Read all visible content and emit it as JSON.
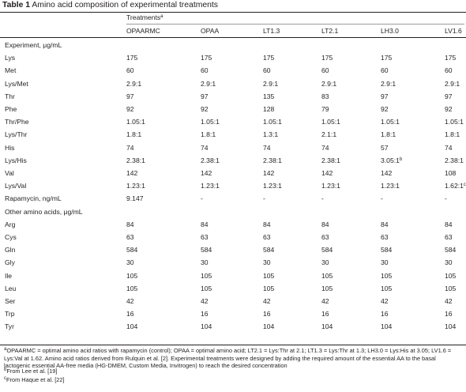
{
  "title": {
    "label": "Table 1",
    "text": "Amino acid composition of experimental treatments"
  },
  "treatments_header": {
    "text": "Treatments",
    "sup": "a"
  },
  "columns": [
    "OPAARMC",
    "OPAA",
    "LT1.3",
    "LT2.1",
    "LH3.0",
    "LV1.6"
  ],
  "rows": [
    {
      "label": "Experiment, μg/mL",
      "section": true,
      "cells": []
    },
    {
      "label": "Lys",
      "cells": [
        {
          "v": "175"
        },
        {
          "v": "175"
        },
        {
          "v": "175"
        },
        {
          "v": "175"
        },
        {
          "v": "175"
        },
        {
          "v": "175"
        }
      ]
    },
    {
      "label": "Met",
      "cells": [
        {
          "v": "60"
        },
        {
          "v": "60"
        },
        {
          "v": "60"
        },
        {
          "v": "60"
        },
        {
          "v": "60"
        },
        {
          "v": "60"
        }
      ]
    },
    {
      "label": "Lys/Met",
      "cells": [
        {
          "v": "2.9:1"
        },
        {
          "v": "2.9:1"
        },
        {
          "v": "2.9:1"
        },
        {
          "v": "2.9:1"
        },
        {
          "v": "2.9:1"
        },
        {
          "v": "2.9:1"
        }
      ]
    },
    {
      "label": "Thr",
      "cells": [
        {
          "v": "97"
        },
        {
          "v": "97"
        },
        {
          "v": "135"
        },
        {
          "v": "83"
        },
        {
          "v": "97"
        },
        {
          "v": "97"
        }
      ]
    },
    {
      "label": "Phe",
      "cells": [
        {
          "v": "92"
        },
        {
          "v": "92"
        },
        {
          "v": "128"
        },
        {
          "v": "79"
        },
        {
          "v": "92"
        },
        {
          "v": "92"
        }
      ]
    },
    {
      "label": "Thr/Phe",
      "cells": [
        {
          "v": "1.05:1"
        },
        {
          "v": "1.05:1"
        },
        {
          "v": "1.05:1"
        },
        {
          "v": "1.05:1"
        },
        {
          "v": "1.05:1"
        },
        {
          "v": "1.05:1"
        }
      ]
    },
    {
      "label": "Lys/Thr",
      "cells": [
        {
          "v": "1.8:1"
        },
        {
          "v": "1.8:1"
        },
        {
          "v": "1.3:1"
        },
        {
          "v": "2.1:1"
        },
        {
          "v": "1.8:1"
        },
        {
          "v": "1.8:1"
        }
      ]
    },
    {
      "label": "His",
      "cells": [
        {
          "v": "74"
        },
        {
          "v": "74"
        },
        {
          "v": "74"
        },
        {
          "v": "74"
        },
        {
          "v": "57"
        },
        {
          "v": "74"
        }
      ]
    },
    {
      "label": "Lys/His",
      "cells": [
        {
          "v": "2.38:1"
        },
        {
          "v": "2.38:1"
        },
        {
          "v": "2.38:1"
        },
        {
          "v": "2.38:1"
        },
        {
          "v": "3.05:1",
          "sup": "b"
        },
        {
          "v": "2.38:1"
        }
      ]
    },
    {
      "label": "Val",
      "cells": [
        {
          "v": "142"
        },
        {
          "v": "142"
        },
        {
          "v": "142"
        },
        {
          "v": "142"
        },
        {
          "v": "142"
        },
        {
          "v": "108"
        }
      ]
    },
    {
      "label": "Lys/Val",
      "cells": [
        {
          "v": "1.23:1"
        },
        {
          "v": "1.23:1"
        },
        {
          "v": "1.23:1"
        },
        {
          "v": "1.23:1"
        },
        {
          "v": "1.23:1"
        },
        {
          "v": "1.62:1",
          "sup": "c"
        }
      ]
    },
    {
      "label": "Rapamycin, ng/mL",
      "cells": [
        {
          "v": "9.147"
        },
        {
          "v": "-"
        },
        {
          "v": "-"
        },
        {
          "v": "-"
        },
        {
          "v": "-"
        },
        {
          "v": "-"
        }
      ]
    },
    {
      "label": "Other amino acids, μg/mL",
      "section": true,
      "cells": []
    },
    {
      "label": "Arg",
      "cells": [
        {
          "v": "84"
        },
        {
          "v": "84"
        },
        {
          "v": "84"
        },
        {
          "v": "84"
        },
        {
          "v": "84"
        },
        {
          "v": "84"
        }
      ]
    },
    {
      "label": "Cys",
      "cells": [
        {
          "v": "63"
        },
        {
          "v": "63"
        },
        {
          "v": "63"
        },
        {
          "v": "63"
        },
        {
          "v": "63"
        },
        {
          "v": "63"
        }
      ]
    },
    {
      "label": "Gln",
      "cells": [
        {
          "v": "584"
        },
        {
          "v": "584"
        },
        {
          "v": "584"
        },
        {
          "v": "584"
        },
        {
          "v": "584"
        },
        {
          "v": "584"
        }
      ]
    },
    {
      "label": "Gly",
      "cells": [
        {
          "v": "30"
        },
        {
          "v": "30"
        },
        {
          "v": "30"
        },
        {
          "v": "30"
        },
        {
          "v": "30"
        },
        {
          "v": "30"
        }
      ]
    },
    {
      "label": "Ile",
      "cells": [
        {
          "v": "105"
        },
        {
          "v": "105"
        },
        {
          "v": "105"
        },
        {
          "v": "105"
        },
        {
          "v": "105"
        },
        {
          "v": "105"
        }
      ]
    },
    {
      "label": "Leu",
      "cells": [
        {
          "v": "105"
        },
        {
          "v": "105"
        },
        {
          "v": "105"
        },
        {
          "v": "105"
        },
        {
          "v": "105"
        },
        {
          "v": "105"
        }
      ]
    },
    {
      "label": "Ser",
      "cells": [
        {
          "v": "42"
        },
        {
          "v": "42"
        },
        {
          "v": "42"
        },
        {
          "v": "42"
        },
        {
          "v": "42"
        },
        {
          "v": "42"
        }
      ]
    },
    {
      "label": "Trp",
      "cells": [
        {
          "v": "16"
        },
        {
          "v": "16"
        },
        {
          "v": "16"
        },
        {
          "v": "16"
        },
        {
          "v": "16"
        },
        {
          "v": "16"
        }
      ]
    },
    {
      "label": "Tyr",
      "cells": [
        {
          "v": "104"
        },
        {
          "v": "104"
        },
        {
          "v": "104"
        },
        {
          "v": "104"
        },
        {
          "v": "104"
        },
        {
          "v": "104"
        }
      ]
    }
  ],
  "footnotes": [
    {
      "sup": "a",
      "text": "OPAARMC = optimal amino acid ratios with rapamycin (control); OPAA = optimal amino acid; LT2.1 = Lys:Thr at 2.1; LT1.3 = Lys:Thr at 1.3; LH3.0 = Lys:His at 3.05; LV1.6 = Lys:Val at 1.62. Amino acid ratios derived from Rulquin et al. [2]. Experimental treatments were designed by adding the required amount of the essential AA to the basal lactogenic essential AA-free media (HG-DMEM, Custom Media, Invitrogen) to reach the desired concentration"
    },
    {
      "sup": "b",
      "text": "From Lee et al. [19]"
    },
    {
      "sup": "c",
      "text": "From Haque et al. [22]"
    }
  ]
}
